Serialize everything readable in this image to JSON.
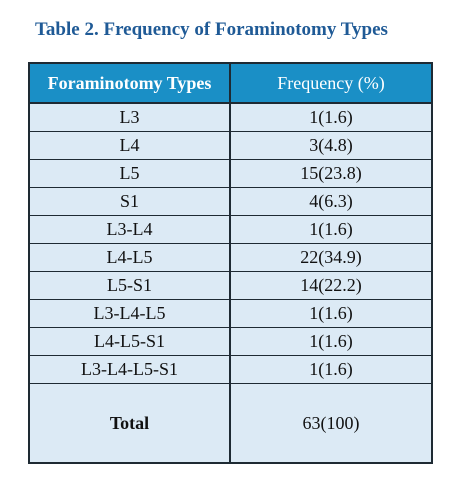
{
  "caption": "Table 2. Frequency of Foraminotomy Types",
  "table": {
    "headers": [
      "Foraminotomy Types",
      "Frequency (%)"
    ],
    "rows": [
      {
        "type": "L3",
        "frequency": "1(1.6)"
      },
      {
        "type": "L4",
        "frequency": "3(4.8)"
      },
      {
        "type": "L5",
        "frequency": "15(23.8)"
      },
      {
        "type": "S1",
        "frequency": "4(6.3)"
      },
      {
        "type": "L3-L4",
        "frequency": "1(1.6)"
      },
      {
        "type": "L4-L5",
        "frequency": "22(34.9)"
      },
      {
        "type": "L5-S1",
        "frequency": "14(22.2)"
      },
      {
        "type": "L3-L4-L5",
        "frequency": "1(1.6)"
      },
      {
        "type": "L4-L5-S1",
        "frequency": "1(1.6)"
      },
      {
        "type": "L3-L4-L5-S1",
        "frequency": "1(1.6)"
      }
    ],
    "total": {
      "label": "Total",
      "frequency": "63(100)"
    }
  }
}
